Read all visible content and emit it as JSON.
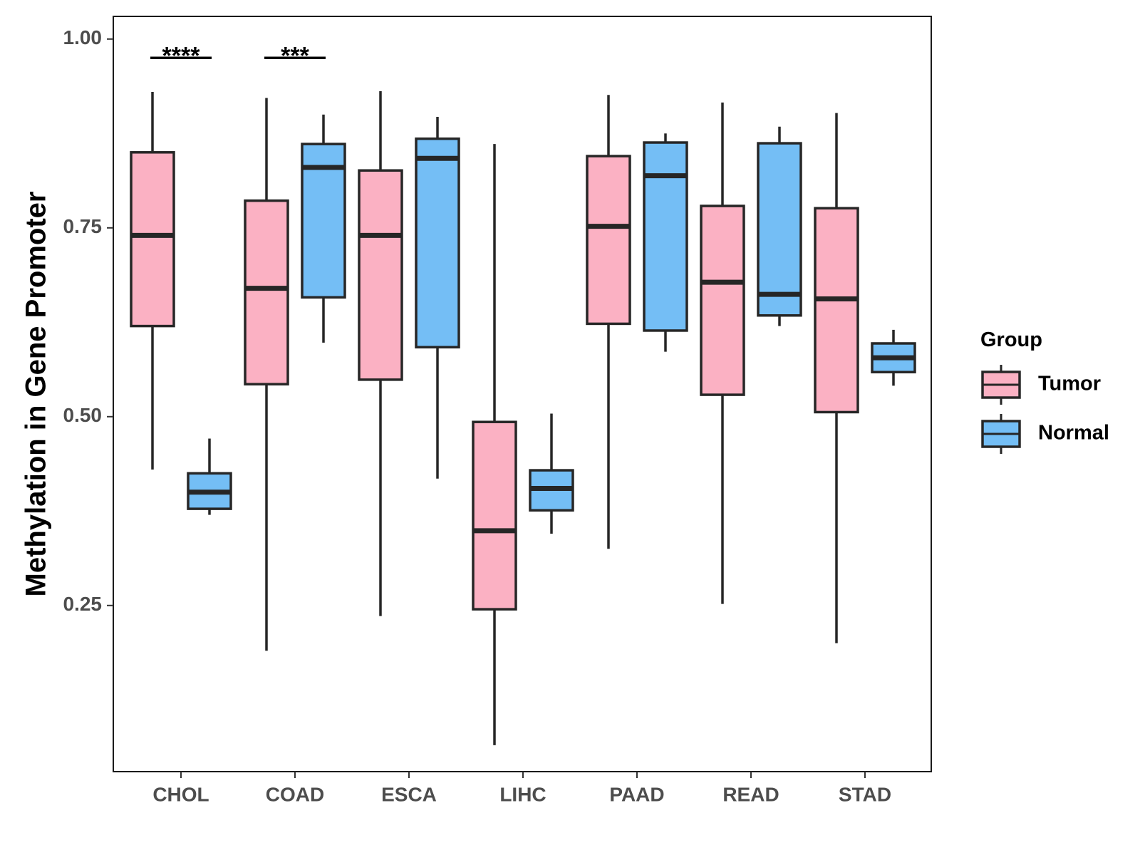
{
  "chart_data": {
    "type": "boxplot",
    "title": "",
    "xlabel": "",
    "ylabel": "Methylation in Gene Promoter",
    "ylim": [
      0.03,
      1.03
    ],
    "yticks": [
      0.25,
      0.5,
      0.75,
      1.0
    ],
    "ytick_labels": [
      "0.25",
      "0.50",
      "0.75",
      "1.00"
    ],
    "grid": false,
    "categories": [
      "CHOL",
      "COAD",
      "ESCA",
      "LIHC",
      "PAAD",
      "READ",
      "STAD"
    ],
    "legend": {
      "title": "Group",
      "position": "right",
      "entries": [
        {
          "name": "Tumor",
          "color": "#FBB1C3"
        },
        {
          "name": "Normal",
          "color": "#74BEF5"
        }
      ]
    },
    "series": [
      {
        "name": "Tumor",
        "color": "#FBB1C3",
        "boxes": [
          {
            "category": "CHOL",
            "min": 0.43,
            "q1": 0.62,
            "median": 0.74,
            "q3": 0.85,
            "max": 0.93
          },
          {
            "category": "COAD",
            "min": 0.19,
            "q1": 0.543,
            "median": 0.67,
            "q3": 0.786,
            "max": 0.922
          },
          {
            "category": "ESCA",
            "min": 0.236,
            "q1": 0.549,
            "median": 0.74,
            "q3": 0.826,
            "max": 0.931
          },
          {
            "category": "LIHC",
            "min": 0.065,
            "q1": 0.245,
            "median": 0.349,
            "q3": 0.493,
            "max": 0.861
          },
          {
            "category": "PAAD",
            "min": 0.325,
            "q1": 0.623,
            "median": 0.752,
            "q3": 0.845,
            "max": 0.926
          },
          {
            "category": "READ",
            "min": 0.252,
            "q1": 0.529,
            "median": 0.678,
            "q3": 0.779,
            "max": 0.916
          },
          {
            "category": "STAD",
            "min": 0.2,
            "q1": 0.506,
            "median": 0.656,
            "q3": 0.776,
            "max": 0.902
          }
        ]
      },
      {
        "name": "Normal",
        "color": "#74BEF5",
        "boxes": [
          {
            "category": "CHOL",
            "min": 0.37,
            "q1": 0.378,
            "median": 0.4,
            "q3": 0.425,
            "max": 0.471
          },
          {
            "category": "COAD",
            "min": 0.598,
            "q1": 0.658,
            "median": 0.83,
            "q3": 0.861,
            "max": 0.9
          },
          {
            "category": "ESCA",
            "min": 0.418,
            "q1": 0.592,
            "median": 0.842,
            "q3": 0.868,
            "max": 0.897
          },
          {
            "category": "LIHC",
            "min": 0.345,
            "q1": 0.376,
            "median": 0.405,
            "q3": 0.429,
            "max": 0.504
          },
          {
            "category": "PAAD",
            "min": 0.586,
            "q1": 0.614,
            "median": 0.819,
            "q3": 0.863,
            "max": 0.875
          },
          {
            "category": "READ",
            "min": 0.62,
            "q1": 0.634,
            "median": 0.662,
            "q3": 0.862,
            "max": 0.884
          },
          {
            "category": "STAD",
            "min": 0.541,
            "q1": 0.559,
            "median": 0.578,
            "q3": 0.597,
            "max": 0.615
          }
        ]
      }
    ],
    "annotations": [
      {
        "category": "CHOL",
        "label": "****",
        "y": 0.975
      },
      {
        "category": "COAD",
        "label": "***",
        "y": 0.975
      }
    ]
  }
}
